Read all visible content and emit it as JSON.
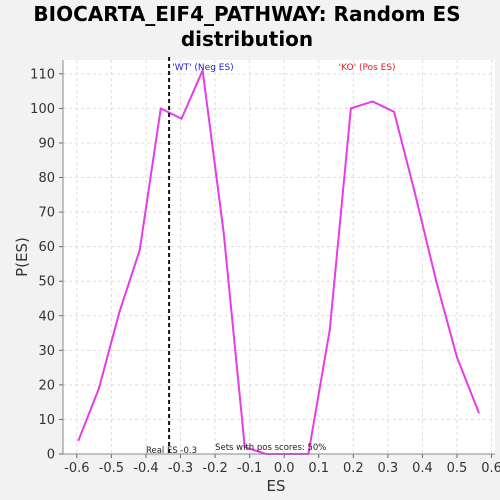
{
  "chart_data": {
    "type": "line",
    "title_line1": "BIOCARTA_EIF4_PATHWAY: Random ES",
    "title_line2": "distribution",
    "xlabel": "ES",
    "ylabel": "P(ES)",
    "xlim": [
      -0.64,
      0.61
    ],
    "ylim": [
      0,
      114
    ],
    "x_ticks": [
      -0.6,
      -0.5,
      -0.4,
      -0.3,
      -0.2,
      -0.1,
      0.0,
      0.1,
      0.2,
      0.3,
      0.4,
      0.5,
      0.6
    ],
    "x_tick_labels": [
      "-0.6",
      "-0.5",
      "-0.4",
      "-0.3",
      "-0.2",
      "-0.1",
      "0.0",
      "0.1",
      "0.2",
      "0.3",
      "0.4",
      "0.5",
      "0.6"
    ],
    "y_ticks": [
      0,
      10,
      20,
      30,
      40,
      50,
      60,
      70,
      80,
      90,
      100,
      110
    ],
    "y_tick_labels": [
      "0",
      "10",
      "20",
      "30",
      "40",
      "50",
      "60",
      "70",
      "80",
      "90",
      "100",
      "110"
    ],
    "grid": true,
    "line_color": "#e63ce6",
    "series": [
      {
        "x": [
          -0.595,
          -0.536,
          -0.477,
          -0.418,
          -0.357,
          -0.297,
          -0.236,
          -0.175,
          -0.114,
          -0.053,
          0.005,
          0.07,
          0.132,
          0.193,
          0.256,
          0.318,
          0.377,
          0.44,
          0.5,
          0.563
        ],
        "y": [
          4,
          19,
          41,
          59,
          100,
          97,
          111,
          64,
          2,
          0,
          0,
          0,
          36,
          100,
          102,
          99,
          76,
          50,
          28,
          12
        ]
      }
    ],
    "real_es": -0.333,
    "real_es_label": "Real ES -0.3",
    "pos_scores_label": "Sets with pos scores: 50%",
    "wt_label": "'WT' (Neg ES)",
    "wt_color": "#2222cc",
    "ko_label": "'KO' (Pos ES)",
    "ko_color": "#e02020"
  }
}
